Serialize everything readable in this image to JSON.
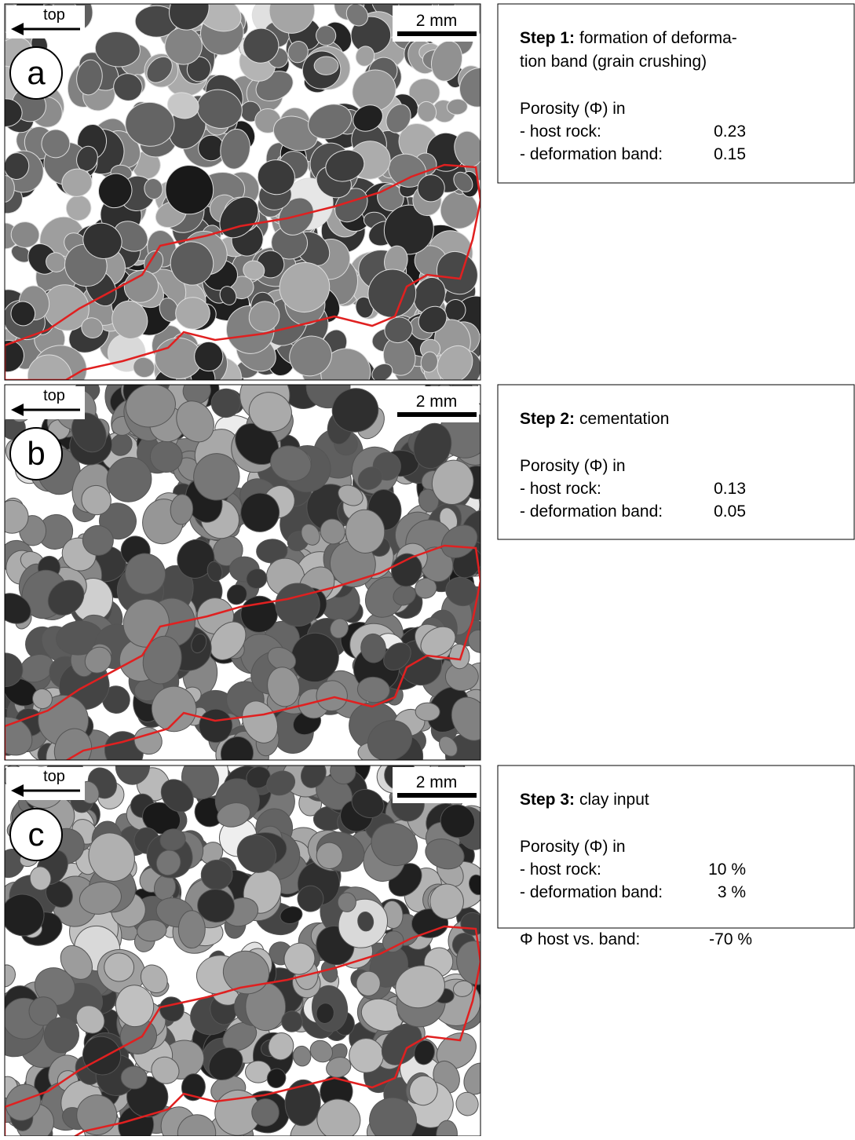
{
  "panels": [
    {
      "label": "a",
      "top": "top",
      "scale": "2 mm",
      "step": "Step 1:",
      "description": [
        "formation of deforma-",
        "tion band (grain crushing)"
      ],
      "porosity_heading": "Porosity (Φ) in",
      "rows": [
        [
          "- host rock:",
          "0.23"
        ],
        [
          "- deformation band:",
          "0.15"
        ]
      ]
    },
    {
      "label": "b",
      "top": "top",
      "scale": "2 mm",
      "step": "Step 2:",
      "description": [
        "cementation"
      ],
      "porosity_heading": "Porosity (Φ) in",
      "rows": [
        [
          "- host rock:",
          "0.13"
        ],
        [
          "- deformation band:",
          "0.05"
        ]
      ]
    },
    {
      "label": "c",
      "top": "top",
      "scale": "2 mm",
      "step": "Step 3:",
      "description": [
        "clay input"
      ],
      "porosity_heading": "Porosity (Φ) in",
      "rows": [
        [
          "- host rock:",
          "10 %"
        ],
        [
          "- deformation band:",
          "3 %"
        ]
      ],
      "comparison": [
        "Φ host vs. band:",
        "-70 %"
      ]
    }
  ]
}
